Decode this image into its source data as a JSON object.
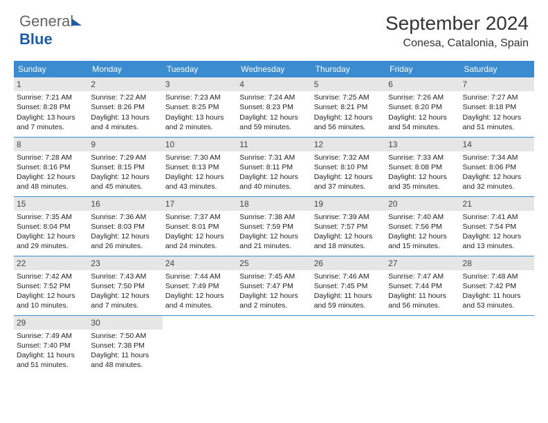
{
  "logo": {
    "text1": "General",
    "text2": "Blue"
  },
  "title": {
    "month": "September 2024",
    "location": "Conesa, Catalonia, Spain"
  },
  "calendar": {
    "type": "table",
    "header_bg": "#3b8bd0",
    "header_fg": "#ffffff",
    "daynum_bg": "#e6e6e6",
    "border_color": "#3b8bd0",
    "background_color": "#ffffff",
    "text_color": "#222222",
    "font_size_body": 10.5,
    "font_size_header": 12,
    "columns": [
      "Sunday",
      "Monday",
      "Tuesday",
      "Wednesday",
      "Thursday",
      "Friday",
      "Saturday"
    ],
    "weeks": [
      [
        {
          "n": "1",
          "sr": "7:21 AM",
          "ss": "8:28 PM",
          "dl": "13 hours and 7 minutes."
        },
        {
          "n": "2",
          "sr": "7:22 AM",
          "ss": "8:26 PM",
          "dl": "13 hours and 4 minutes."
        },
        {
          "n": "3",
          "sr": "7:23 AM",
          "ss": "8:25 PM",
          "dl": "13 hours and 2 minutes."
        },
        {
          "n": "4",
          "sr": "7:24 AM",
          "ss": "8:23 PM",
          "dl": "12 hours and 59 minutes."
        },
        {
          "n": "5",
          "sr": "7:25 AM",
          "ss": "8:21 PM",
          "dl": "12 hours and 56 minutes."
        },
        {
          "n": "6",
          "sr": "7:26 AM",
          "ss": "8:20 PM",
          "dl": "12 hours and 54 minutes."
        },
        {
          "n": "7",
          "sr": "7:27 AM",
          "ss": "8:18 PM",
          "dl": "12 hours and 51 minutes."
        }
      ],
      [
        {
          "n": "8",
          "sr": "7:28 AM",
          "ss": "8:16 PM",
          "dl": "12 hours and 48 minutes."
        },
        {
          "n": "9",
          "sr": "7:29 AM",
          "ss": "8:15 PM",
          "dl": "12 hours and 45 minutes."
        },
        {
          "n": "10",
          "sr": "7:30 AM",
          "ss": "8:13 PM",
          "dl": "12 hours and 43 minutes."
        },
        {
          "n": "11",
          "sr": "7:31 AM",
          "ss": "8:11 PM",
          "dl": "12 hours and 40 minutes."
        },
        {
          "n": "12",
          "sr": "7:32 AM",
          "ss": "8:10 PM",
          "dl": "12 hours and 37 minutes."
        },
        {
          "n": "13",
          "sr": "7:33 AM",
          "ss": "8:08 PM",
          "dl": "12 hours and 35 minutes."
        },
        {
          "n": "14",
          "sr": "7:34 AM",
          "ss": "8:06 PM",
          "dl": "12 hours and 32 minutes."
        }
      ],
      [
        {
          "n": "15",
          "sr": "7:35 AM",
          "ss": "8:04 PM",
          "dl": "12 hours and 29 minutes."
        },
        {
          "n": "16",
          "sr": "7:36 AM",
          "ss": "8:03 PM",
          "dl": "12 hours and 26 minutes."
        },
        {
          "n": "17",
          "sr": "7:37 AM",
          "ss": "8:01 PM",
          "dl": "12 hours and 24 minutes."
        },
        {
          "n": "18",
          "sr": "7:38 AM",
          "ss": "7:59 PM",
          "dl": "12 hours and 21 minutes."
        },
        {
          "n": "19",
          "sr": "7:39 AM",
          "ss": "7:57 PM",
          "dl": "12 hours and 18 minutes."
        },
        {
          "n": "20",
          "sr": "7:40 AM",
          "ss": "7:56 PM",
          "dl": "12 hours and 15 minutes."
        },
        {
          "n": "21",
          "sr": "7:41 AM",
          "ss": "7:54 PM",
          "dl": "12 hours and 13 minutes."
        }
      ],
      [
        {
          "n": "22",
          "sr": "7:42 AM",
          "ss": "7:52 PM",
          "dl": "12 hours and 10 minutes."
        },
        {
          "n": "23",
          "sr": "7:43 AM",
          "ss": "7:50 PM",
          "dl": "12 hours and 7 minutes."
        },
        {
          "n": "24",
          "sr": "7:44 AM",
          "ss": "7:49 PM",
          "dl": "12 hours and 4 minutes."
        },
        {
          "n": "25",
          "sr": "7:45 AM",
          "ss": "7:47 PM",
          "dl": "12 hours and 2 minutes."
        },
        {
          "n": "26",
          "sr": "7:46 AM",
          "ss": "7:45 PM",
          "dl": "11 hours and 59 minutes."
        },
        {
          "n": "27",
          "sr": "7:47 AM",
          "ss": "7:44 PM",
          "dl": "11 hours and 56 minutes."
        },
        {
          "n": "28",
          "sr": "7:48 AM",
          "ss": "7:42 PM",
          "dl": "11 hours and 53 minutes."
        }
      ],
      [
        {
          "n": "29",
          "sr": "7:49 AM",
          "ss": "7:40 PM",
          "dl": "11 hours and 51 minutes."
        },
        {
          "n": "30",
          "sr": "7:50 AM",
          "ss": "7:38 PM",
          "dl": "11 hours and 48 minutes."
        },
        null,
        null,
        null,
        null,
        null
      ]
    ],
    "labels": {
      "sunrise": "Sunrise: ",
      "sunset": "Sunset: ",
      "daylight": "Daylight: "
    }
  }
}
